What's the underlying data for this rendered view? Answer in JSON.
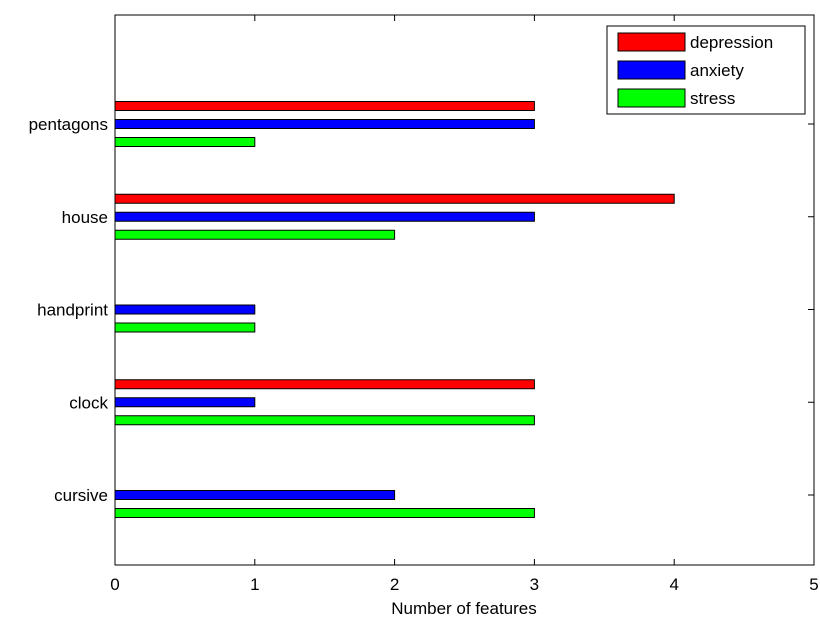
{
  "chart_data": {
    "type": "bar",
    "orientation": "horizontal",
    "categories": [
      "pentagons",
      "house",
      "handprint",
      "clock",
      "cursive"
    ],
    "series": [
      {
        "name": "depression",
        "color": "#ff0000",
        "values": [
          3,
          4,
          0,
          3,
          0
        ]
      },
      {
        "name": "anxiety",
        "color": "#0000ff",
        "values": [
          3,
          3,
          1,
          1,
          2
        ]
      },
      {
        "name": "stress",
        "color": "#00ff00",
        "values": [
          1,
          2,
          1,
          3,
          3
        ]
      }
    ],
    "xlabel": "Number of features",
    "ylabel": "",
    "xlim": [
      0,
      5
    ],
    "xticks": [
      "0",
      "1",
      "2",
      "3",
      "4",
      "5"
    ],
    "grid": false,
    "legend_position": "top-right"
  }
}
